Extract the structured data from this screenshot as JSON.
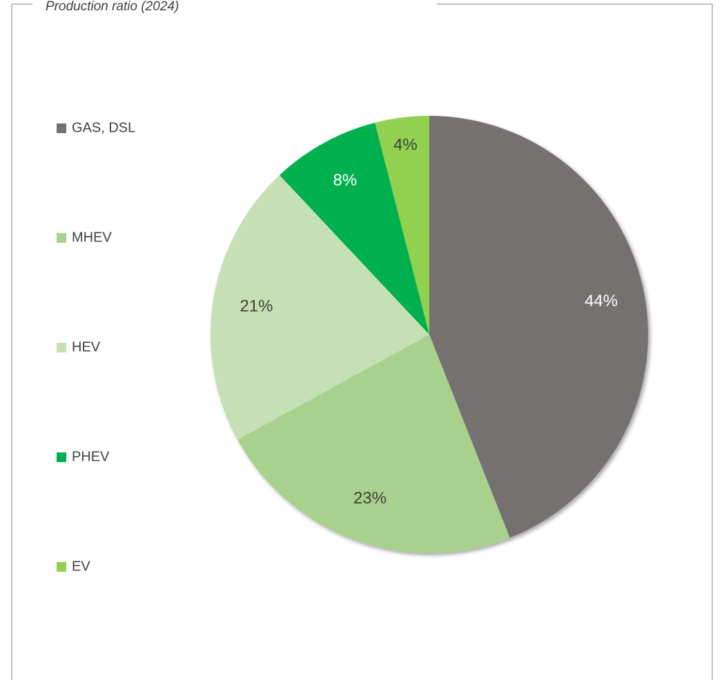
{
  "chart_data": {
    "type": "pie",
    "title": "Production ratio (2024)",
    "categories": [
      "GAS, DSL",
      "MHEV",
      "HEV",
      "PHEV",
      "EV"
    ],
    "values": [
      44,
      23,
      21,
      8,
      4
    ],
    "value_labels": [
      "44%",
      "23%",
      "21%",
      "8%",
      "4%"
    ],
    "colors": [
      "#767171",
      "#a9d18e",
      "#c5e0b4",
      "#00b050",
      "#92d050"
    ],
    "legend": "left"
  }
}
